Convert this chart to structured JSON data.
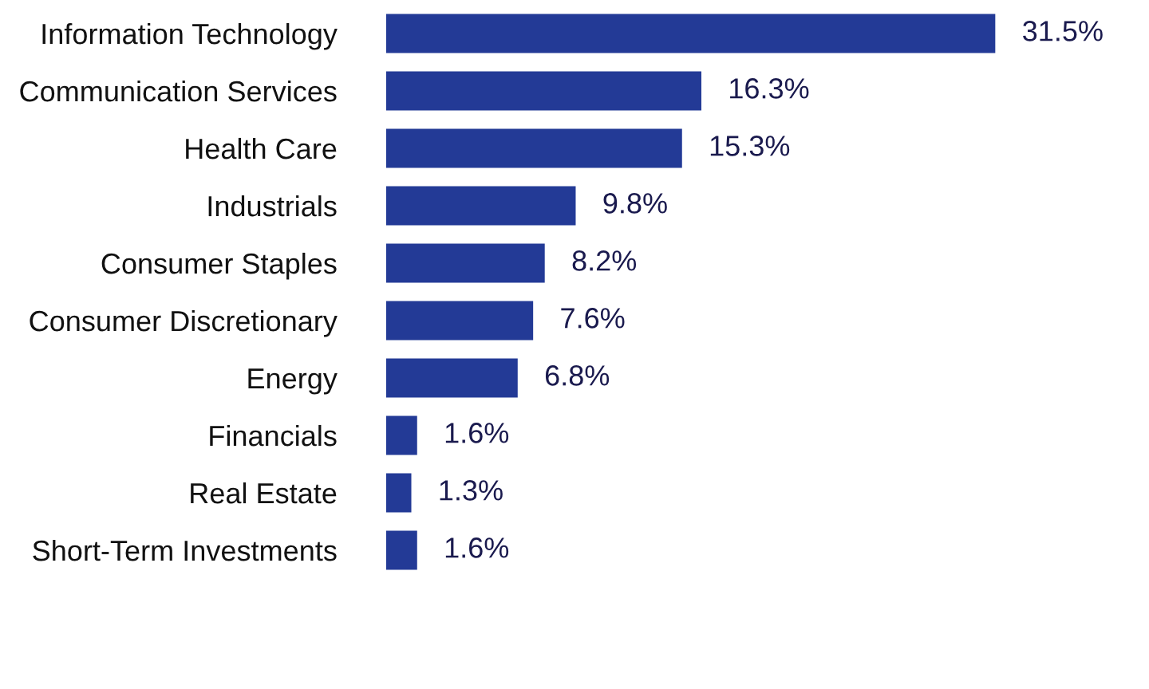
{
  "chart_data": {
    "type": "bar",
    "orientation": "horizontal",
    "categories": [
      "Information Technology",
      "Communication Services",
      "Health Care",
      "Industrials",
      "Consumer Staples",
      "Consumer Discretionary",
      "Energy",
      "Financials",
      "Real Estate",
      "Short-Term Investments"
    ],
    "values": [
      31.5,
      16.3,
      15.3,
      9.8,
      8.2,
      7.6,
      6.8,
      1.6,
      1.3,
      1.6
    ],
    "value_labels": [
      "31.5%",
      "16.3%",
      "15.3%",
      "9.8%",
      "8.2%",
      "7.6%",
      "6.8%",
      "1.6%",
      "1.3%",
      "1.6%"
    ],
    "color": "#233a96"
  }
}
